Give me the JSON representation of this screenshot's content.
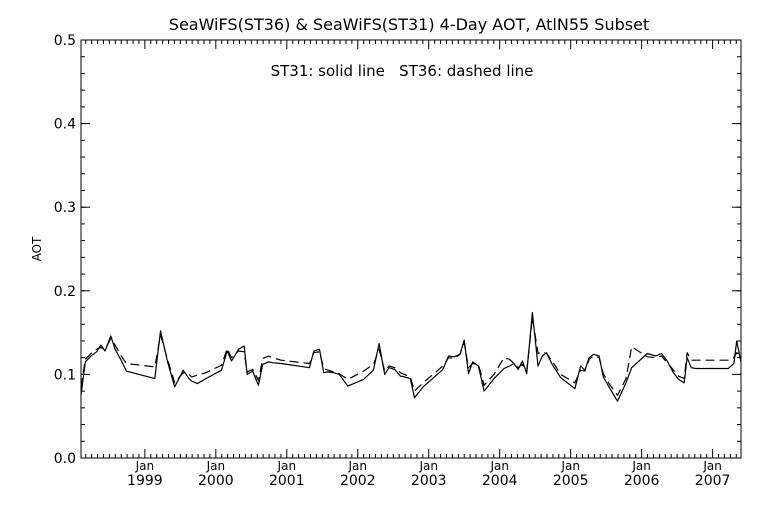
{
  "chart_data": {
    "type": "line",
    "title": "SeaWiFS(ST36) & SeaWiFS(ST31) 4-Day AOT, AtlN55 Subset",
    "annotation": "ST31: solid line   ST36: dashed line",
    "ylabel": "AOT",
    "xlabel": "",
    "ylim": [
      0.0,
      0.5
    ],
    "xlim": [
      1998.1,
      2007.4
    ],
    "yticks": [
      "0.0",
      "0.1",
      "0.2",
      "0.3",
      "0.4",
      "0.5"
    ],
    "ytick_values": [
      0.0,
      0.1,
      0.2,
      0.3,
      0.4,
      0.5
    ],
    "xtick_month": "Jan",
    "xtick_years": [
      "1999",
      "2000",
      "2001",
      "2002",
      "2003",
      "2004",
      "2005",
      "2006",
      "2007"
    ],
    "grid": false,
    "series": [
      {
        "name": "ST31",
        "style": "solid",
        "x": [
          1998.1,
          1998.16,
          1998.24,
          1998.32,
          1998.38,
          1998.44,
          1998.52,
          1998.58,
          1998.66,
          1998.74,
          1999.14,
          1999.22,
          1999.32,
          1999.42,
          1999.54,
          1999.62,
          1999.66,
          1999.74,
          1999.86,
          2000.08,
          2000.16,
          2000.22,
          2000.32,
          2000.4,
          2000.44,
          2000.52,
          2000.6,
          2000.66,
          2000.74,
          2000.8,
          2000.92,
          2001.32,
          2001.38,
          2001.46,
          2001.52,
          2001.58,
          2001.66,
          2001.74,
          2001.86,
          2002.08,
          2002.22,
          2002.3,
          2002.38,
          2002.44,
          2002.52,
          2002.6,
          2002.66,
          2002.74,
          2002.8,
          2002.92,
          2003.2,
          2003.28,
          2003.36,
          2003.44,
          2003.5,
          2003.56,
          2003.62,
          2003.7,
          2003.78,
          2003.92,
          2004.06,
          2004.14,
          2004.2,
          2004.26,
          2004.32,
          2004.38,
          2004.46,
          2004.54,
          2004.6,
          2004.66,
          2004.74,
          2004.86,
          2005.06,
          2005.14,
          2005.2,
          2005.26,
          2005.32,
          2005.4,
          2005.46,
          2005.54,
          2005.66,
          2005.78,
          2005.86,
          2006.08,
          2006.2,
          2006.28,
          2006.36,
          2006.44,
          2006.52,
          2006.6,
          2006.64,
          2006.7,
          2006.76,
          2006.82,
          2007.22,
          2007.3,
          2007.34,
          2007.4
        ],
        "values": [
          0.075,
          0.115,
          0.122,
          0.127,
          0.135,
          0.128,
          0.146,
          0.13,
          0.118,
          0.104,
          0.095,
          0.152,
          0.115,
          0.085,
          0.105,
          0.095,
          0.092,
          0.089,
          0.095,
          0.105,
          0.128,
          0.116,
          0.13,
          0.134,
          0.1,
          0.104,
          0.087,
          0.112,
          0.115,
          0.114,
          0.113,
          0.108,
          0.128,
          0.13,
          0.102,
          0.103,
          0.102,
          0.1,
          0.086,
          0.094,
          0.105,
          0.137,
          0.1,
          0.108,
          0.106,
          0.098,
          0.097,
          0.095,
          0.072,
          0.085,
          0.106,
          0.122,
          0.121,
          0.124,
          0.141,
          0.101,
          0.115,
          0.11,
          0.08,
          0.095,
          0.107,
          0.11,
          0.113,
          0.106,
          0.116,
          0.101,
          0.174,
          0.11,
          0.122,
          0.126,
          0.112,
          0.096,
          0.083,
          0.11,
          0.105,
          0.12,
          0.124,
          0.122,
          0.097,
          0.085,
          0.068,
          0.09,
          0.108,
          0.125,
          0.122,
          0.125,
          0.116,
          0.103,
          0.094,
          0.09,
          0.12,
          0.108,
          0.107,
          0.107,
          0.107,
          0.113,
          0.14,
          0.115
        ]
      },
      {
        "name": "ST36",
        "style": "dashed",
        "x": [
          1998.1,
          1998.16,
          1998.24,
          1998.32,
          1998.38,
          1998.44,
          1998.52,
          1998.58,
          1998.66,
          1998.74,
          1999.14,
          1999.22,
          1999.32,
          1999.42,
          1999.54,
          1999.62,
          1999.66,
          1999.74,
          1999.86,
          2000.08,
          2000.16,
          2000.22,
          2000.32,
          2000.4,
          2000.44,
          2000.52,
          2000.6,
          2000.66,
          2000.74,
          2000.8,
          2000.92,
          2001.32,
          2001.38,
          2001.46,
          2001.52,
          2001.58,
          2001.66,
          2001.74,
          2001.86,
          2002.08,
          2002.22,
          2002.3,
          2002.38,
          2002.44,
          2002.52,
          2002.6,
          2002.66,
          2002.74,
          2002.8,
          2002.92,
          2003.2,
          2003.28,
          2003.36,
          2003.44,
          2003.5,
          2003.56,
          2003.62,
          2003.7,
          2003.78,
          2003.92,
          2004.06,
          2004.14,
          2004.2,
          2004.26,
          2004.32,
          2004.38,
          2004.46,
          2004.54,
          2004.6,
          2004.66,
          2004.74,
          2004.86,
          2005.06,
          2005.14,
          2005.2,
          2005.26,
          2005.32,
          2005.4,
          2005.46,
          2005.54,
          2005.66,
          2005.78,
          2005.86,
          2006.08,
          2006.2,
          2006.28,
          2006.36,
          2006.44,
          2006.52,
          2006.6,
          2006.64,
          2006.7,
          2006.76,
          2006.82,
          2007.22,
          2007.3,
          2007.34,
          2007.4
        ],
        "values": [
          0.085,
          0.118,
          0.125,
          0.13,
          0.132,
          0.13,
          0.143,
          0.135,
          0.123,
          0.113,
          0.109,
          0.147,
          0.118,
          0.09,
          0.102,
          0.1,
          0.097,
          0.099,
          0.102,
          0.111,
          0.131,
          0.12,
          0.128,
          0.127,
          0.103,
          0.106,
          0.093,
          0.119,
          0.122,
          0.12,
          0.117,
          0.113,
          0.126,
          0.127,
          0.107,
          0.105,
          0.103,
          0.101,
          0.094,
          0.104,
          0.112,
          0.13,
          0.104,
          0.11,
          0.108,
          0.102,
          0.1,
          0.097,
          0.08,
          0.09,
          0.11,
          0.12,
          0.119,
          0.124,
          0.138,
          0.108,
          0.113,
          0.112,
          0.087,
          0.1,
          0.12,
          0.118,
          0.113,
          0.108,
          0.112,
          0.104,
          0.168,
          0.125,
          0.127,
          0.125,
          0.116,
          0.1,
          0.09,
          0.105,
          0.104,
          0.118,
          0.122,
          0.12,
          0.101,
          0.089,
          0.075,
          0.095,
          0.133,
          0.121,
          0.12,
          0.122,
          0.114,
          0.106,
          0.098,
          0.095,
          0.126,
          0.117,
          0.117,
          0.117,
          0.117,
          0.12,
          0.126,
          0.123
        ]
      }
    ]
  }
}
